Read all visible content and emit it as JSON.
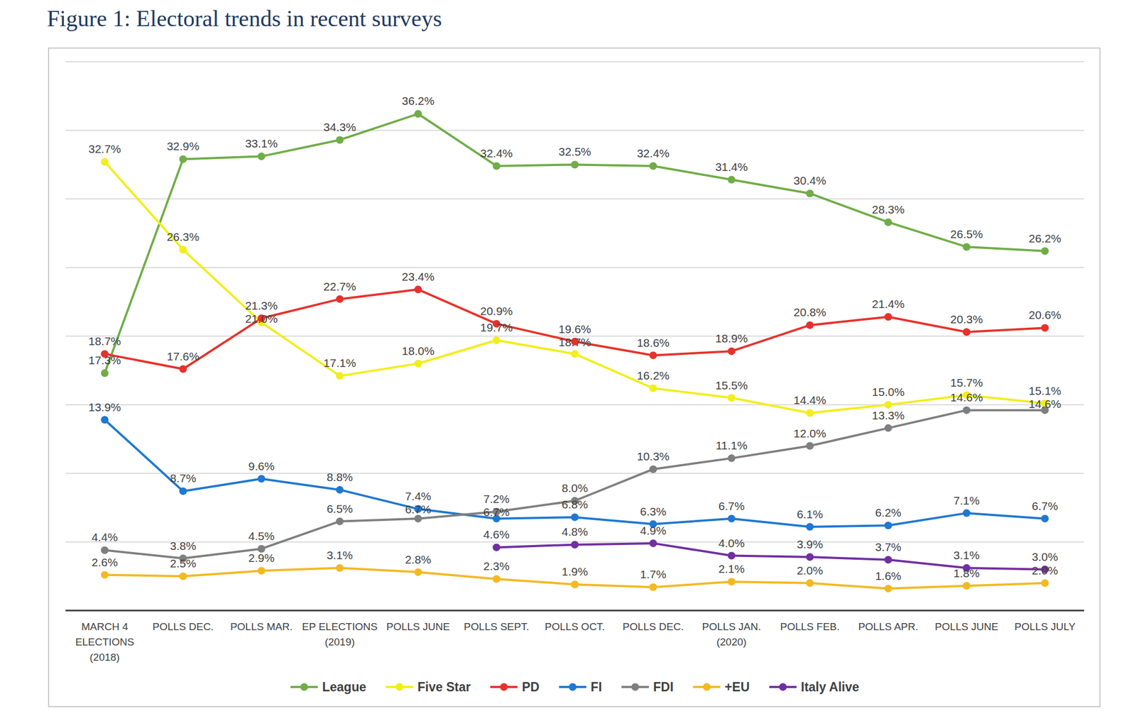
{
  "chart_data": {
    "type": "line",
    "title": "Figure 1: Electoral trends in recent surveys",
    "categories": [
      "MARCH 4 ELECTIONS (2018)",
      "POLLS DEC.",
      "POLLS MAR.",
      "EP ELECTIONS (2019)",
      "POLLS JUNE",
      "POLLS SEPT.",
      "POLLS OCT.",
      "POLLS DEC.",
      "POLLS JAN. (2020)",
      "POLLS FEB.",
      "POLLS APR.",
      "POLLS JUNE",
      "POLLS JULY"
    ],
    "series": [
      {
        "name": "League",
        "color": "#70ad47",
        "values": [
          17.3,
          32.9,
          33.1,
          34.3,
          36.2,
          32.4,
          32.5,
          32.4,
          31.4,
          30.4,
          28.3,
          26.5,
          26.2
        ],
        "value_labels": [
          "17.3%",
          "32.9%",
          "33.1%",
          "34.3%",
          "36.2%",
          "32.4%",
          "32.5%",
          "32.4%",
          "31.4%",
          "30.4%",
          "28.3%",
          "26.5%",
          "26.2%"
        ]
      },
      {
        "name": "Five Star",
        "color": "#f2ee1a",
        "values": [
          32.7,
          26.3,
          21.0,
          17.1,
          18.0,
          19.7,
          18.7,
          16.2,
          15.5,
          14.4,
          15.0,
          15.7,
          15.1
        ],
        "value_labels": [
          "32.7%",
          "26.3%",
          "21.0%",
          "17.1%",
          "18.0%",
          "19.7%",
          "18.7%",
          "16.2%",
          "15.5%",
          "14.4%",
          "15.0%",
          "15.7%",
          "15.1%"
        ]
      },
      {
        "name": "PD",
        "color": "#e8312b",
        "values": [
          18.7,
          17.6,
          21.3,
          22.7,
          23.4,
          20.9,
          19.6,
          18.6,
          18.9,
          20.8,
          21.4,
          20.3,
          20.6
        ],
        "value_labels": [
          "18.7%",
          "17.6%",
          "21.3%",
          "22.7%",
          "23.4%",
          "20.9%",
          "19.6%",
          "18.6%",
          "18.9%",
          "20.8%",
          "21.4%",
          "20.3%",
          "20.6%"
        ]
      },
      {
        "name": "FI",
        "color": "#1f78d1",
        "values": [
          13.9,
          8.7,
          9.6,
          8.8,
          7.4,
          6.7,
          6.8,
          6.3,
          6.7,
          6.1,
          6.2,
          7.1,
          6.7
        ],
        "value_labels": [
          "13.9%",
          "8.7%",
          "9.6%",
          "8.8%",
          "7.4%",
          "6.7%",
          "6.8%",
          "6.3%",
          "6.7%",
          "6.1%",
          "6.2%",
          "7.1%",
          "6.7%"
        ]
      },
      {
        "name": "FDI",
        "color": "#7f7f7f",
        "values": [
          4.4,
          3.8,
          4.5,
          6.5,
          6.7,
          7.2,
          8.0,
          10.3,
          11.1,
          12.0,
          13.3,
          14.6,
          14.6
        ],
        "value_labels": [
          "4.4%",
          "3.8%",
          "4.5%",
          "6.5%",
          "6.7%",
          "7.2%",
          "8.0%",
          "10.3%",
          "11.1%",
          "12.0%",
          "13.3%",
          "14.6%",
          "14.6%"
        ]
      },
      {
        "name": "+EU",
        "color": "#f4b922",
        "values": [
          2.6,
          2.5,
          2.9,
          3.1,
          2.8,
          2.3,
          1.9,
          1.7,
          2.1,
          2.0,
          1.6,
          1.8,
          2.0
        ],
        "value_labels": [
          "2.6%",
          "2.5%",
          "2.9%",
          "3.1%",
          "2.8%",
          "2.3%",
          "1.9%",
          "1.7%",
          "2.1%",
          "2.0%",
          "1.6%",
          "1.8%",
          "2.0%"
        ]
      },
      {
        "name": "Italy Alive",
        "color": "#7030a0",
        "values": [
          null,
          null,
          null,
          null,
          null,
          4.6,
          4.8,
          4.9,
          4.0,
          3.9,
          3.7,
          3.1,
          3.0
        ],
        "value_labels": [
          null,
          null,
          null,
          null,
          null,
          "4.6%",
          "4.8%",
          "4.9%",
          "4.0%",
          "3.9%",
          "3.7%",
          "3.1%",
          "3.0%"
        ]
      }
    ],
    "ylim": [
      0,
      40
    ],
    "yticks": [
      0,
      5,
      10,
      15,
      20,
      25,
      30,
      35,
      40
    ],
    "grid": true,
    "legend": "bottom",
    "data_labels": true,
    "tick_labels": "x",
    "marker": "circle"
  }
}
